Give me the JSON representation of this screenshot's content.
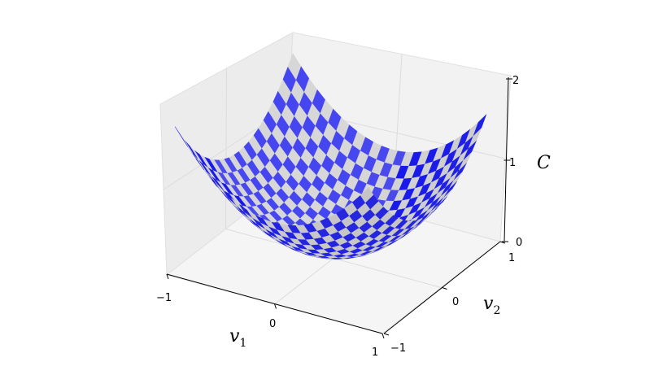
{
  "chart_data": {
    "type": "surface",
    "function": "C = v1^2 + v2^2",
    "xlabel": "v",
    "xlabel_sub": "1",
    "ylabel": "v",
    "ylabel_sub": "2",
    "zlabel": "C",
    "xlim": [
      -1,
      1
    ],
    "ylim": [
      -1,
      1
    ],
    "zlim": [
      0,
      2
    ],
    "xticks": [
      "−1",
      "0",
      "1"
    ],
    "yticks": [
      "−1",
      "0",
      "1"
    ],
    "zticks": [
      "0",
      "1",
      "2"
    ],
    "grid": true,
    "colors": {
      "checker_a": "#0000ee",
      "checker_b": "#cccccc",
      "pane": "#f0f0f0"
    },
    "pattern": "checkerboard"
  }
}
